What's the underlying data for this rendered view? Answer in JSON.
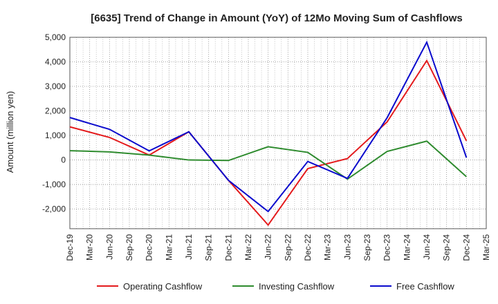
{
  "chart_data": {
    "type": "line",
    "title": "[6635]  Trend of Change in Amount (YoY) of 12Mo Moving Sum of Cashflows",
    "xlabel": "",
    "ylabel": "Amount (million yen)",
    "ylim": [
      -2800,
      5000
    ],
    "yticks": [
      -2000,
      -1000,
      0,
      1000,
      2000,
      3000,
      4000,
      5000
    ],
    "ytick_labels": [
      "-2,000",
      "-1,000",
      "0",
      "1,000",
      "2,000",
      "3,000",
      "4,000",
      "5,000"
    ],
    "categories": [
      "Dec-19",
      "Mar-20",
      "Jun-20",
      "Sep-20",
      "Dec-20",
      "Mar-21",
      "Jun-21",
      "Sep-21",
      "Dec-21",
      "Mar-22",
      "Jun-22",
      "Sep-22",
      "Dec-22",
      "Mar-23",
      "Jun-23",
      "Sep-23",
      "Dec-23",
      "Mar-24",
      "Jun-24",
      "Sep-24",
      "Dec-24",
      "Mar-25"
    ],
    "grid": true,
    "legend_position": "bottom",
    "series": [
      {
        "name": "Operating Cashflow",
        "color": "#e41a1c",
        "points": [
          {
            "x": "Dec-19",
            "y": 1350
          },
          {
            "x": "Jun-20",
            "y": 920
          },
          {
            "x": "Dec-20",
            "y": 200
          },
          {
            "x": "Jun-21",
            "y": 1150
          },
          {
            "x": "Dec-21",
            "y": -830
          },
          {
            "x": "Jun-22",
            "y": -2650
          },
          {
            "x": "Dec-22",
            "y": -350
          },
          {
            "x": "Jun-23",
            "y": 60
          },
          {
            "x": "Dec-23",
            "y": 1550
          },
          {
            "x": "Jun-24",
            "y": 4050
          },
          {
            "x": "Dec-24",
            "y": 780
          }
        ]
      },
      {
        "name": "Investing Cashflow",
        "color": "#2e8b2e",
        "points": [
          {
            "x": "Dec-19",
            "y": 380
          },
          {
            "x": "Jun-20",
            "y": 330
          },
          {
            "x": "Dec-20",
            "y": 200
          },
          {
            "x": "Jun-21",
            "y": 0
          },
          {
            "x": "Dec-21",
            "y": -20
          },
          {
            "x": "Jun-22",
            "y": 540
          },
          {
            "x": "Dec-22",
            "y": 310
          },
          {
            "x": "Jun-23",
            "y": -780
          },
          {
            "x": "Dec-23",
            "y": 350
          },
          {
            "x": "Jun-24",
            "y": 770
          },
          {
            "x": "Dec-24",
            "y": -680
          }
        ]
      },
      {
        "name": "Free Cashflow",
        "color": "#0a0acd",
        "points": [
          {
            "x": "Dec-19",
            "y": 1730
          },
          {
            "x": "Jun-20",
            "y": 1250
          },
          {
            "x": "Dec-20",
            "y": 370
          },
          {
            "x": "Jun-21",
            "y": 1150
          },
          {
            "x": "Dec-21",
            "y": -830
          },
          {
            "x": "Jun-22",
            "y": -2100
          },
          {
            "x": "Dec-22",
            "y": -60
          },
          {
            "x": "Jun-23",
            "y": -750
          },
          {
            "x": "Dec-23",
            "y": 1720
          },
          {
            "x": "Jun-24",
            "y": 4800
          },
          {
            "x": "Dec-24",
            "y": 100
          }
        ]
      }
    ]
  }
}
